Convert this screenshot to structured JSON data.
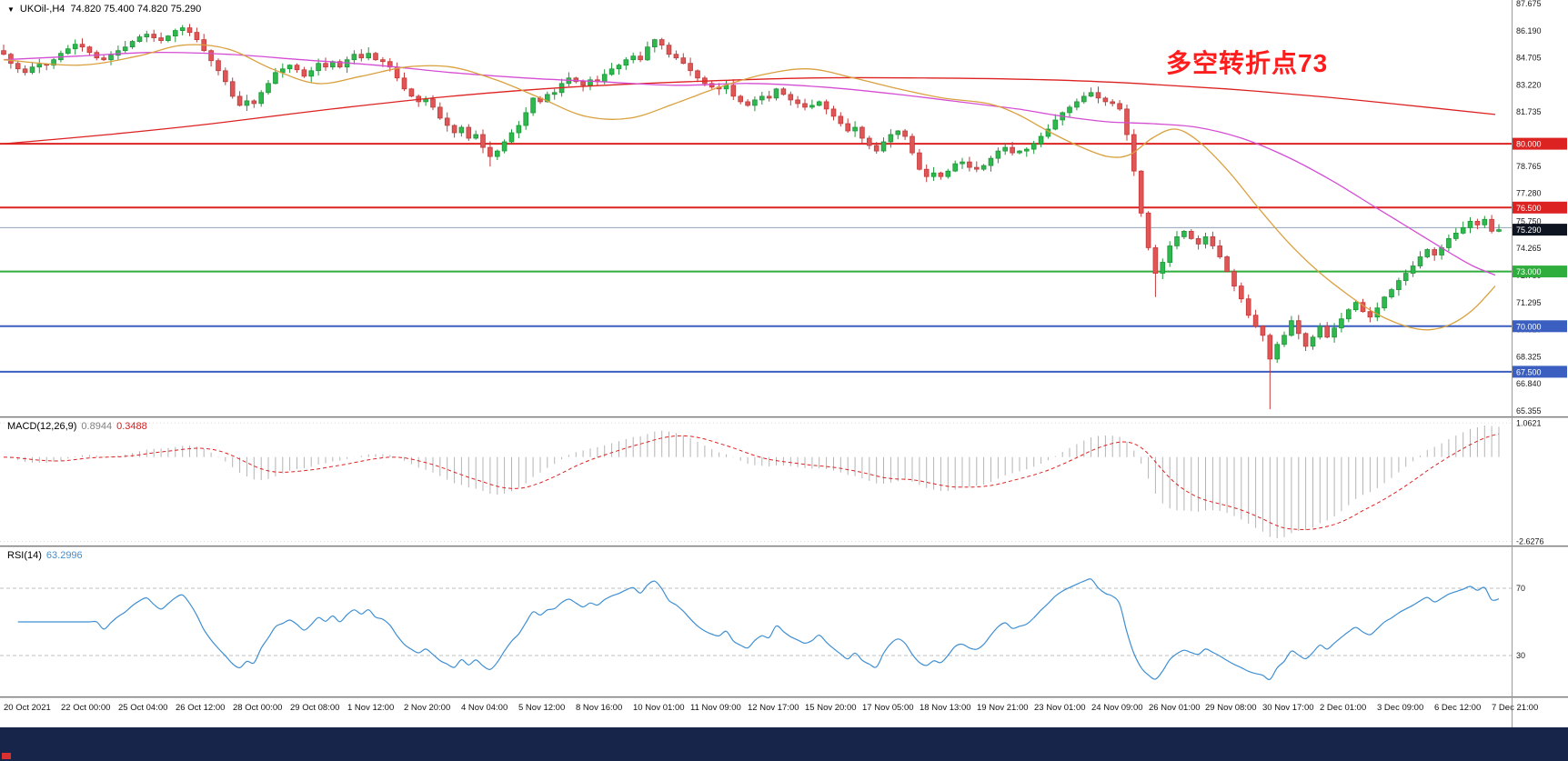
{
  "header": {
    "dropdown_icon": "▼",
    "symbol_timeframe": "UKOil-,H4",
    "ohlc": "74.820 75.400 74.820 75.290"
  },
  "annotation": {
    "text": "多空转折点73"
  },
  "indicators": {
    "macd": {
      "name": "MACD(12,26,9)",
      "value_main": "0.8944",
      "value_signal": "0.3488"
    },
    "rsi": {
      "name": "RSI(14)",
      "value": "63.2996"
    }
  },
  "chart_data": {
    "type": "candlestick",
    "symbol": "UKOil-",
    "timeframe": "H4",
    "title": "UKOil-,H4 74.820 75.400 74.820 75.290",
    "first_open": 85.1,
    "closes": [
      84.9,
      84.4,
      84.1,
      83.9,
      84.2,
      84.35,
      84.3,
      84.6,
      84.95,
      85.2,
      85.45,
      85.3,
      85.0,
      84.7,
      84.6,
      84.85,
      85.1,
      85.3,
      85.6,
      85.85,
      86.0,
      85.8,
      85.65,
      85.9,
      86.2,
      86.35,
      86.1,
      85.7,
      85.1,
      84.55,
      84.0,
      83.4,
      82.6,
      82.1,
      82.35,
      82.2,
      82.8,
      83.3,
      83.9,
      84.1,
      84.3,
      84.05,
      83.7,
      84.0,
      84.4,
      84.2,
      84.5,
      84.2,
      84.6,
      84.9,
      84.7,
      84.95,
      84.6,
      84.5,
      84.2,
      83.6,
      83.0,
      82.6,
      82.3,
      82.45,
      82.0,
      81.4,
      81.0,
      80.6,
      80.9,
      80.3,
      80.5,
      79.8,
      79.3,
      79.6,
      80.1,
      80.6,
      81.0,
      81.7,
      82.5,
      82.3,
      82.7,
      82.8,
      83.3,
      83.6,
      83.4,
      83.2,
      83.5,
      83.4,
      83.8,
      84.1,
      84.3,
      84.6,
      84.8,
      84.6,
      85.3,
      85.7,
      85.4,
      84.9,
      84.7,
      84.4,
      84.0,
      83.6,
      83.3,
      83.1,
      83.0,
      83.2,
      82.6,
      82.3,
      82.1,
      82.4,
      82.6,
      82.5,
      83.0,
      82.7,
      82.4,
      82.2,
      82.0,
      82.1,
      82.3,
      81.9,
      81.5,
      81.1,
      80.7,
      80.9,
      80.3,
      79.9,
      79.6,
      80.1,
      80.5,
      80.7,
      80.4,
      79.5,
      78.6,
      78.2,
      78.4,
      78.2,
      78.5,
      78.9,
      79.0,
      78.7,
      78.6,
      78.8,
      79.2,
      79.6,
      79.8,
      79.5,
      79.6,
      79.7,
      80.0,
      80.4,
      80.8,
      81.3,
      81.7,
      82.0,
      82.3,
      82.6,
      82.8,
      82.5,
      82.3,
      82.2,
      81.9,
      80.5,
      78.5,
      76.2,
      74.3,
      72.9,
      73.5,
      74.4,
      74.9,
      75.2,
      74.8,
      74.5,
      74.9,
      74.4,
      73.8,
      73.0,
      72.2,
      71.5,
      70.6,
      70.0,
      69.5,
      68.2,
      69.0,
      69.5,
      70.3,
      69.6,
      68.9,
      69.4,
      70.0,
      69.4,
      69.9,
      70.4,
      70.9,
      71.3,
      70.8,
      70.5,
      71.0,
      71.6,
      72.0,
      72.5,
      72.9,
      73.3,
      73.8,
      74.2,
      73.9,
      74.3,
      74.8,
      75.1,
      75.4,
      75.75,
      75.55,
      75.85,
      75.2,
      75.29
    ],
    "wick_overrides": [
      {
        "index": 68,
        "low": 78.75
      },
      {
        "index": 161,
        "low": 71.6
      },
      {
        "index": 177,
        "low": 65.45
      },
      {
        "index": 205,
        "high": 75.97
      }
    ],
    "x_labels": [
      "20 Oct 2021",
      "22 Oct 00:00",
      "25 Oct 04:00",
      "26 Oct 12:00",
      "28 Oct 00:00",
      "29 Oct 08:00",
      "1 Nov 12:00",
      "2 Nov 20:00",
      "4 Nov 04:00",
      "5 Nov 12:00",
      "8 Nov 16:00",
      "10 Nov 01:00",
      "11 Nov 09:00",
      "12 Nov 17:00",
      "15 Nov 20:00",
      "17 Nov 05:00",
      "18 Nov 13:00",
      "19 Nov 21:00",
      "23 Nov 01:00",
      "24 Nov 09:00",
      "26 Nov 01:00",
      "29 Nov 08:00",
      "30 Nov 17:00",
      "2 Dec 01:00",
      "3 Dec 09:00",
      "6 Dec 12:00",
      "7 Dec 21:00"
    ],
    "y_axis": {
      "min": 65.355,
      "max": 87.675,
      "ticks": [
        87.675,
        86.19,
        84.705,
        83.22,
        81.735,
        78.765,
        77.28,
        75.75,
        74.265,
        72.78,
        71.295,
        69.81,
        68.325,
        66.84,
        65.355
      ]
    },
    "hlines": [
      {
        "price": 80.0,
        "label": "80.000",
        "color": "#dd2222",
        "width": 2,
        "badge_bg": "#dd2222"
      },
      {
        "price": 76.5,
        "label": "76.500",
        "color": "#dd2222",
        "width": 2,
        "badge_bg": "#dd2222"
      },
      {
        "price": 75.4,
        "label": "",
        "color": "#90a4b8",
        "width": 1,
        "badge_bg": ""
      },
      {
        "price": 73.0,
        "label": "73.000",
        "color": "#2fae3e",
        "width": 2,
        "badge_bg": "#2fae3e"
      },
      {
        "price": 70.0,
        "label": "70.000",
        "color": "#3a5fc0",
        "width": 2,
        "badge_bg": "#3a5fc0"
      },
      {
        "price": 67.5,
        "label": "67.500",
        "color": "#3a5fc0",
        "width": 2,
        "badge_bg": "#3a5fc0"
      }
    ],
    "current_price": {
      "value": 75.29,
      "label": "75.290",
      "badge_bg": "#0e1420"
    },
    "moving_averages": [
      {
        "name": "slow",
        "color": "#dd2222",
        "points": [
          [
            0,
            80.0
          ],
          [
            0.07,
            80.5
          ],
          [
            0.14,
            81.1
          ],
          [
            0.22,
            81.9
          ],
          [
            0.3,
            82.6
          ],
          [
            0.38,
            83.1
          ],
          [
            0.46,
            83.4
          ],
          [
            0.54,
            83.6
          ],
          [
            0.62,
            83.6
          ],
          [
            0.7,
            83.5
          ],
          [
            0.76,
            83.3
          ],
          [
            0.82,
            83.0
          ],
          [
            0.88,
            82.6
          ],
          [
            0.93,
            82.2
          ],
          [
            1.0,
            81.6
          ]
        ]
      },
      {
        "name": "mid",
        "color": "#d44ed4",
        "points": [
          [
            0,
            84.6
          ],
          [
            0.05,
            84.8
          ],
          [
            0.1,
            85.0
          ],
          [
            0.15,
            84.9
          ],
          [
            0.2,
            84.6
          ],
          [
            0.25,
            84.3
          ],
          [
            0.3,
            83.9
          ],
          [
            0.35,
            83.6
          ],
          [
            0.4,
            83.4
          ],
          [
            0.45,
            83.2
          ],
          [
            0.5,
            83.3
          ],
          [
            0.55,
            83.1
          ],
          [
            0.6,
            82.7
          ],
          [
            0.65,
            82.2
          ],
          [
            0.68,
            81.9
          ],
          [
            0.71,
            81.5
          ],
          [
            0.74,
            81.2
          ],
          [
            0.77,
            81.1
          ],
          [
            0.8,
            80.9
          ],
          [
            0.83,
            80.3
          ],
          [
            0.86,
            79.3
          ],
          [
            0.89,
            78.0
          ],
          [
            0.92,
            76.5
          ],
          [
            0.95,
            75.0
          ],
          [
            0.97,
            74.0
          ],
          [
            0.985,
            73.3
          ],
          [
            1.0,
            72.8
          ]
        ]
      },
      {
        "name": "fast",
        "color": "#d9a13f",
        "points": [
          [
            0,
            84.6
          ],
          [
            0.05,
            84.3
          ],
          [
            0.09,
            84.8
          ],
          [
            0.12,
            85.4
          ],
          [
            0.15,
            85.2
          ],
          [
            0.18,
            84.1
          ],
          [
            0.21,
            83.3
          ],
          [
            0.24,
            83.7
          ],
          [
            0.27,
            84.2
          ],
          [
            0.3,
            84.2
          ],
          [
            0.33,
            83.5
          ],
          [
            0.36,
            82.5
          ],
          [
            0.39,
            81.5
          ],
          [
            0.42,
            81.4
          ],
          [
            0.45,
            82.2
          ],
          [
            0.48,
            83.1
          ],
          [
            0.51,
            83.8
          ],
          [
            0.54,
            84.1
          ],
          [
            0.57,
            83.6
          ],
          [
            0.6,
            83.0
          ],
          [
            0.63,
            82.5
          ],
          [
            0.66,
            82.2
          ],
          [
            0.68,
            81.6
          ],
          [
            0.7,
            80.7
          ],
          [
            0.72,
            79.9
          ],
          [
            0.74,
            79.3
          ],
          [
            0.755,
            79.4
          ],
          [
            0.77,
            80.3
          ],
          [
            0.785,
            80.8
          ],
          [
            0.8,
            80.2
          ],
          [
            0.82,
            78.6
          ],
          [
            0.84,
            76.6
          ],
          [
            0.86,
            74.7
          ],
          [
            0.88,
            73.1
          ],
          [
            0.9,
            71.8
          ],
          [
            0.92,
            70.7
          ],
          [
            0.94,
            70.0
          ],
          [
            0.955,
            69.8
          ],
          [
            0.97,
            70.1
          ],
          [
            0.985,
            70.9
          ],
          [
            1.0,
            72.2
          ]
        ]
      }
    ],
    "macd": {
      "label": "MACD(12,26,9)",
      "fast": 12,
      "slow": 26,
      "signal": 9,
      "value_main": 0.8944,
      "value_signal": 0.3488,
      "y_ticks": [
        1.0621,
        -2.6276
      ]
    },
    "rsi": {
      "label": "RSI(14)",
      "period": 14,
      "value": 63.2996,
      "levels": [
        70,
        30
      ],
      "scale_min": 10,
      "scale_max": 90
    },
    "colors": {
      "up": "#2eb84d",
      "up_border": "#1d9638",
      "down": "#e05555",
      "down_border": "#c23b3b",
      "ma_slow": "#dd2222",
      "ma_mid": "#d44ed4",
      "ma_fast": "#d9a13f",
      "bid_line": "#90a4b8",
      "hist": "#b4b4b4",
      "macd_signal": "#dd2222",
      "rsi": "#3f8fd2",
      "level": "#bfbfbf",
      "annotation": "#ff1c1c",
      "footer_bg": "#17254a",
      "axis_text": "#1a1a1a"
    }
  }
}
